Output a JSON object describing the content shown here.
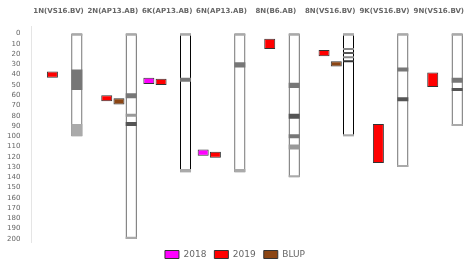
{
  "chart_data": {
    "type": "bar",
    "categories": [
      "1N(VS16.BV)",
      "2N(AP13.AB)",
      "6K(AP13.AB)",
      "6N(AP13.AB)",
      "8N(B6.AB)",
      "8N(VS16.BV)",
      "9K(VS16.BV)",
      "9N(VS16.BV)"
    ],
    "lengths": [
      100,
      200,
      135,
      135,
      140,
      100,
      130,
      90
    ],
    "color": "#ffffff",
    "bands": [
      [
        {
          "start": 0,
          "end": 2,
          "color": "#aaaaaa"
        },
        {
          "start": 35,
          "end": 55,
          "color": "#777777"
        },
        {
          "start": 88,
          "end": 100,
          "color": "#aaaaaa"
        }
      ],
      [
        {
          "start": 0,
          "end": 2,
          "color": "#aaaaaa"
        },
        {
          "start": 58,
          "end": 63,
          "color": "#777777"
        },
        {
          "start": 78,
          "end": 81,
          "color": "#999999"
        },
        {
          "start": 86,
          "end": 90,
          "color": "#555555"
        },
        {
          "start": 198,
          "end": 200,
          "color": "#aaaaaa"
        }
      ],
      [
        {
          "start": 0,
          "end": 2,
          "color": "#aaaaaa"
        },
        {
          "start": 43,
          "end": 47,
          "color": "#777777"
        },
        {
          "start": 132,
          "end": 135,
          "color": "#aaaaaa"
        }
      ],
      [
        {
          "start": 0,
          "end": 2,
          "color": "#aaaaaa"
        },
        {
          "start": 28,
          "end": 33,
          "color": "#777777"
        },
        {
          "start": 132,
          "end": 135,
          "color": "#aaaaaa"
        }
      ],
      [
        {
          "start": 0,
          "end": 2,
          "color": "#aaaaaa"
        },
        {
          "start": 48,
          "end": 53,
          "color": "#777777"
        },
        {
          "start": 78,
          "end": 83,
          "color": "#555555"
        },
        {
          "start": 98,
          "end": 102,
          "color": "#777777"
        },
        {
          "start": 108,
          "end": 113,
          "color": "#999999"
        },
        {
          "start": 138,
          "end": 140,
          "color": "#aaaaaa"
        }
      ],
      [
        {
          "start": 0,
          "end": 2,
          "color": "#aaaaaa"
        },
        {
          "start": 14,
          "end": 16,
          "color": "#888888"
        },
        {
          "start": 18,
          "end": 20,
          "color": "#555555"
        },
        {
          "start": 22,
          "end": 24,
          "color": "#888888"
        },
        {
          "start": 26,
          "end": 28,
          "color": "#333333"
        },
        {
          "start": 98,
          "end": 100,
          "color": "#aaaaaa"
        }
      ],
      [
        {
          "start": 0,
          "end": 2,
          "color": "#aaaaaa"
        },
        {
          "start": 33,
          "end": 37,
          "color": "#777777"
        },
        {
          "start": 62,
          "end": 66,
          "color": "#555555"
        },
        {
          "start": 128,
          "end": 130,
          "color": "#aaaaaa"
        }
      ],
      [
        {
          "start": 0,
          "end": 2,
          "color": "#aaaaaa"
        },
        {
          "start": 43,
          "end": 48,
          "color": "#777777"
        },
        {
          "start": 53,
          "end": 56,
          "color": "#555555"
        },
        {
          "start": 88,
          "end": 90,
          "color": "#aaaaaa"
        }
      ]
    ],
    "series": [
      {
        "name": "2018",
        "color": "#ff00ff",
        "values": [
          null,
          null,
          [
            43,
            49
          ],
          [
            113,
            119
          ],
          null,
          null,
          null,
          null
        ]
      },
      {
        "name": "2019",
        "color": "#ff0000",
        "values": [
          [
            37,
            43
          ],
          [
            60,
            66
          ],
          [
            44,
            50
          ],
          [
            115,
            121
          ],
          [
            5,
            15
          ],
          [
            16,
            22
          ],
          [
            88,
            126
          ],
          [
            38,
            52
          ]
        ]
      },
      {
        "name": "BLUP",
        "color": "#8B4513",
        "values": [
          null,
          [
            63,
            69
          ],
          null,
          null,
          null,
          [
            27,
            32
          ],
          null,
          null
        ]
      }
    ],
    "ylim": [
      203,
      -7
    ],
    "yticks": [
      0,
      10,
      20,
      30,
      40,
      50,
      60,
      70,
      80,
      90,
      100,
      110,
      120,
      130,
      140,
      150,
      160,
      170,
      180,
      190,
      200
    ],
    "grid": false,
    "legend": "bottom"
  }
}
